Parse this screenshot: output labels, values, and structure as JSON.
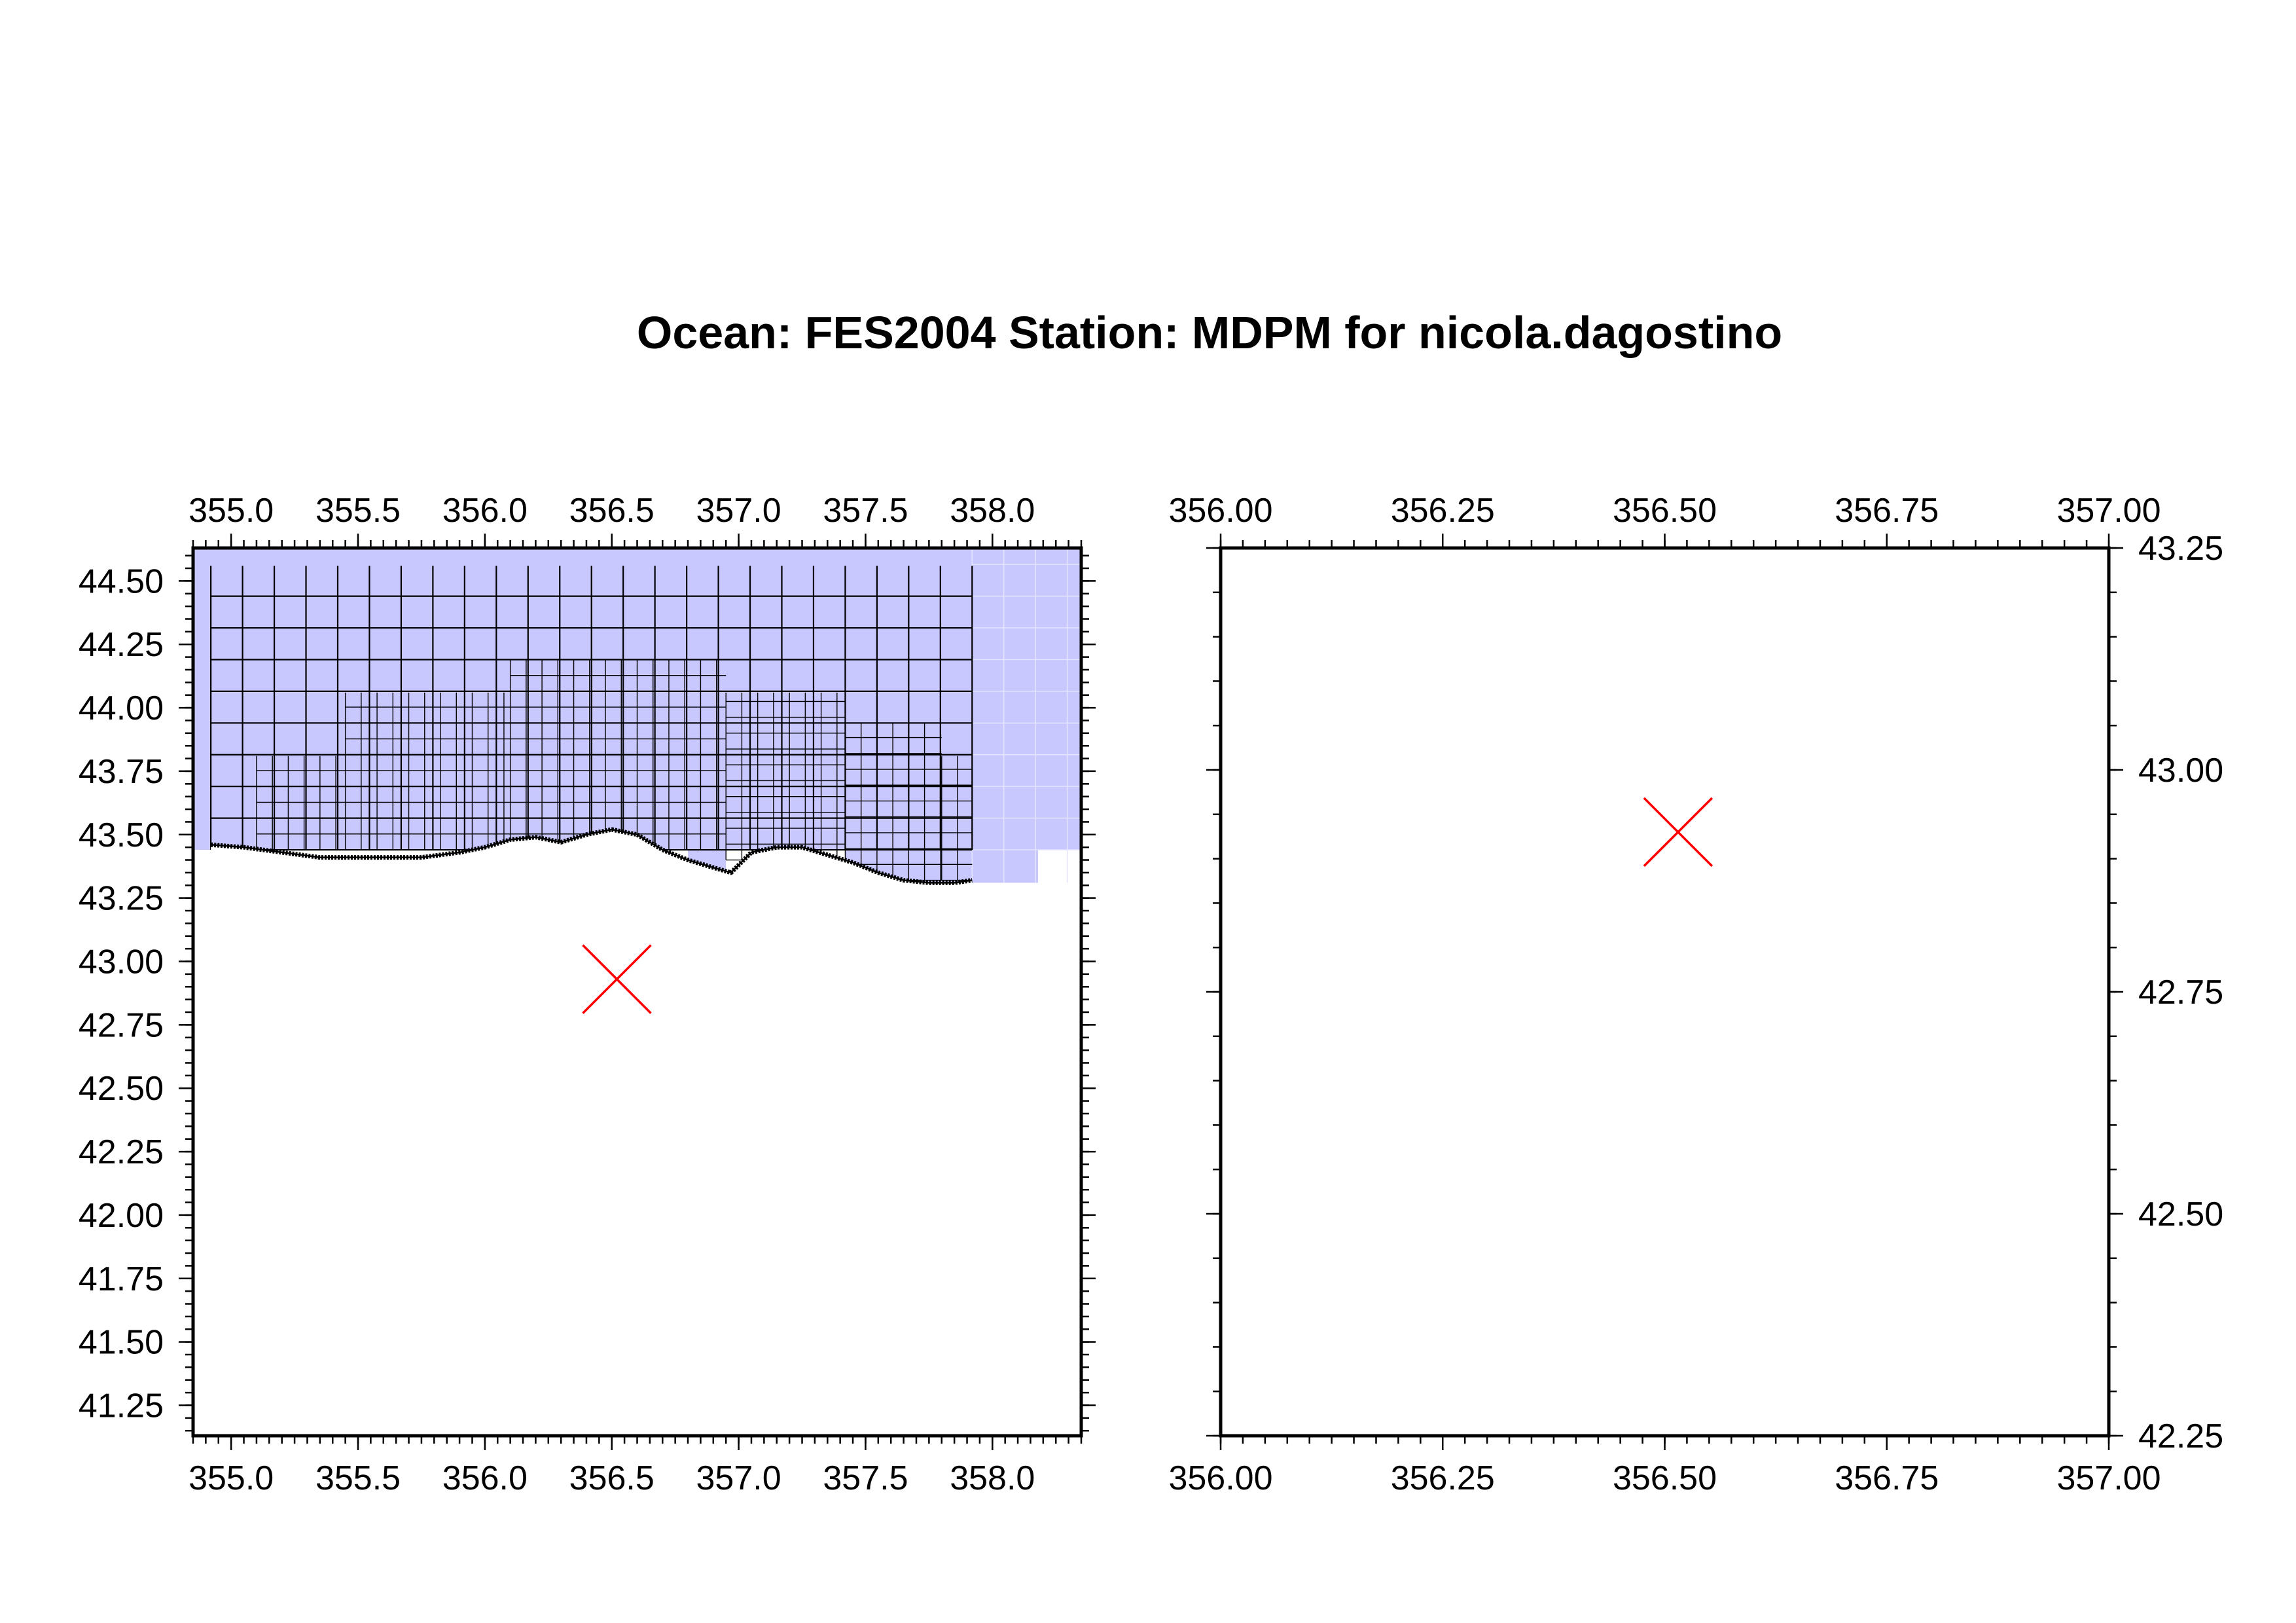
{
  "title": "Ocean: FES2004  Station: MDPM  for nicola.dagostino",
  "colors": {
    "ocean_fill": "#c8c8ff",
    "grid_line": "#000000",
    "station_marker": "#ff0000",
    "frame": "#000000"
  },
  "chart_data": [
    {
      "type": "map",
      "name": "overview",
      "xlim": [
        354.85,
        358.35
      ],
      "ylim": [
        41.13,
        44.63
      ],
      "x_ticks": [
        "355.0",
        "355.5",
        "356.0",
        "356.5",
        "357.0",
        "357.5",
        "358.0"
      ],
      "y_ticks": [
        "44.50",
        "44.25",
        "44.00",
        "43.75",
        "43.50",
        "43.25",
        "43.00",
        "42.75",
        "42.50",
        "42.25",
        "42.00",
        "41.75",
        "41.50",
        "41.25"
      ],
      "x_tick_labels_top": true,
      "x_tick_labels_bottom": true,
      "y_tick_labels_left": true,
      "station": {
        "lon": 356.52,
        "lat": 42.93,
        "marker": "x"
      },
      "ocean_blocks": [
        {
          "lon": [
            354.85,
            358.35
          ],
          "lat": [
            43.44,
            44.63
          ]
        },
        {
          "lon": [
            357.42,
            358.18
          ],
          "lat": [
            43.31,
            43.44
          ]
        },
        {
          "lon": [
            356.8,
            356.95
          ],
          "lat": [
            43.31,
            43.44
          ]
        }
      ],
      "coarse_grid": {
        "lon": [
          354.92,
          357.92
        ],
        "lat": [
          43.44,
          44.56
        ],
        "step": 0.125
      },
      "fine_grid": [
        {
          "lon": [
            356.1,
            356.95
          ],
          "lat": [
            43.44,
            44.19
          ],
          "step": 0.0625
        },
        {
          "lon": [
            355.45,
            356.1
          ],
          "lat": [
            43.44,
            44.06
          ],
          "step": 0.0625
        },
        {
          "lon": [
            356.95,
            357.42
          ],
          "lat": [
            43.4,
            44.06
          ],
          "step": 0.0625
        },
        {
          "lon": [
            357.42,
            357.8
          ],
          "lat": [
            43.32,
            43.94
          ],
          "step": 0.0625
        },
        {
          "lon": [
            355.1,
            355.45
          ],
          "lat": [
            43.44,
            43.81
          ],
          "step": 0.0625
        },
        {
          "lon": [
            357.8,
            357.92
          ],
          "lat": [
            43.32,
            43.81
          ],
          "step": 0.0625
        }
      ],
      "coastline": [
        [
          354.92,
          43.46
        ],
        [
          355.05,
          43.45
        ],
        [
          355.2,
          43.43
        ],
        [
          355.35,
          43.41
        ],
        [
          355.55,
          43.41
        ],
        [
          355.75,
          43.41
        ],
        [
          355.9,
          43.43
        ],
        [
          356.0,
          43.45
        ],
        [
          356.1,
          43.48
        ],
        [
          356.2,
          43.49
        ],
        [
          356.3,
          43.47
        ],
        [
          356.4,
          43.5
        ],
        [
          356.5,
          43.52
        ],
        [
          356.6,
          43.5
        ],
        [
          356.7,
          43.44
        ],
        [
          356.8,
          43.4
        ],
        [
          356.9,
          43.37
        ],
        [
          356.97,
          43.35
        ],
        [
          357.05,
          43.43
        ],
        [
          357.15,
          43.45
        ],
        [
          357.25,
          43.45
        ],
        [
          357.35,
          43.42
        ],
        [
          357.45,
          43.39
        ],
        [
          357.55,
          43.35
        ],
        [
          357.65,
          43.32
        ],
        [
          357.75,
          43.31
        ],
        [
          357.85,
          43.31
        ],
        [
          357.92,
          43.32
        ]
      ]
    },
    {
      "type": "map",
      "name": "zoom",
      "xlim": [
        356.0,
        357.0
      ],
      "ylim": [
        42.25,
        43.25
      ],
      "x_ticks": [
        "356.00",
        "356.25",
        "356.50",
        "356.75",
        "357.00"
      ],
      "y_ticks": [
        "43.25",
        "43.00",
        "42.75",
        "42.50",
        "42.25"
      ],
      "x_tick_labels_top": true,
      "x_tick_labels_bottom": true,
      "y_tick_labels_right": true,
      "station": {
        "lon": 356.515,
        "lat": 42.93,
        "marker": "x"
      }
    }
  ]
}
